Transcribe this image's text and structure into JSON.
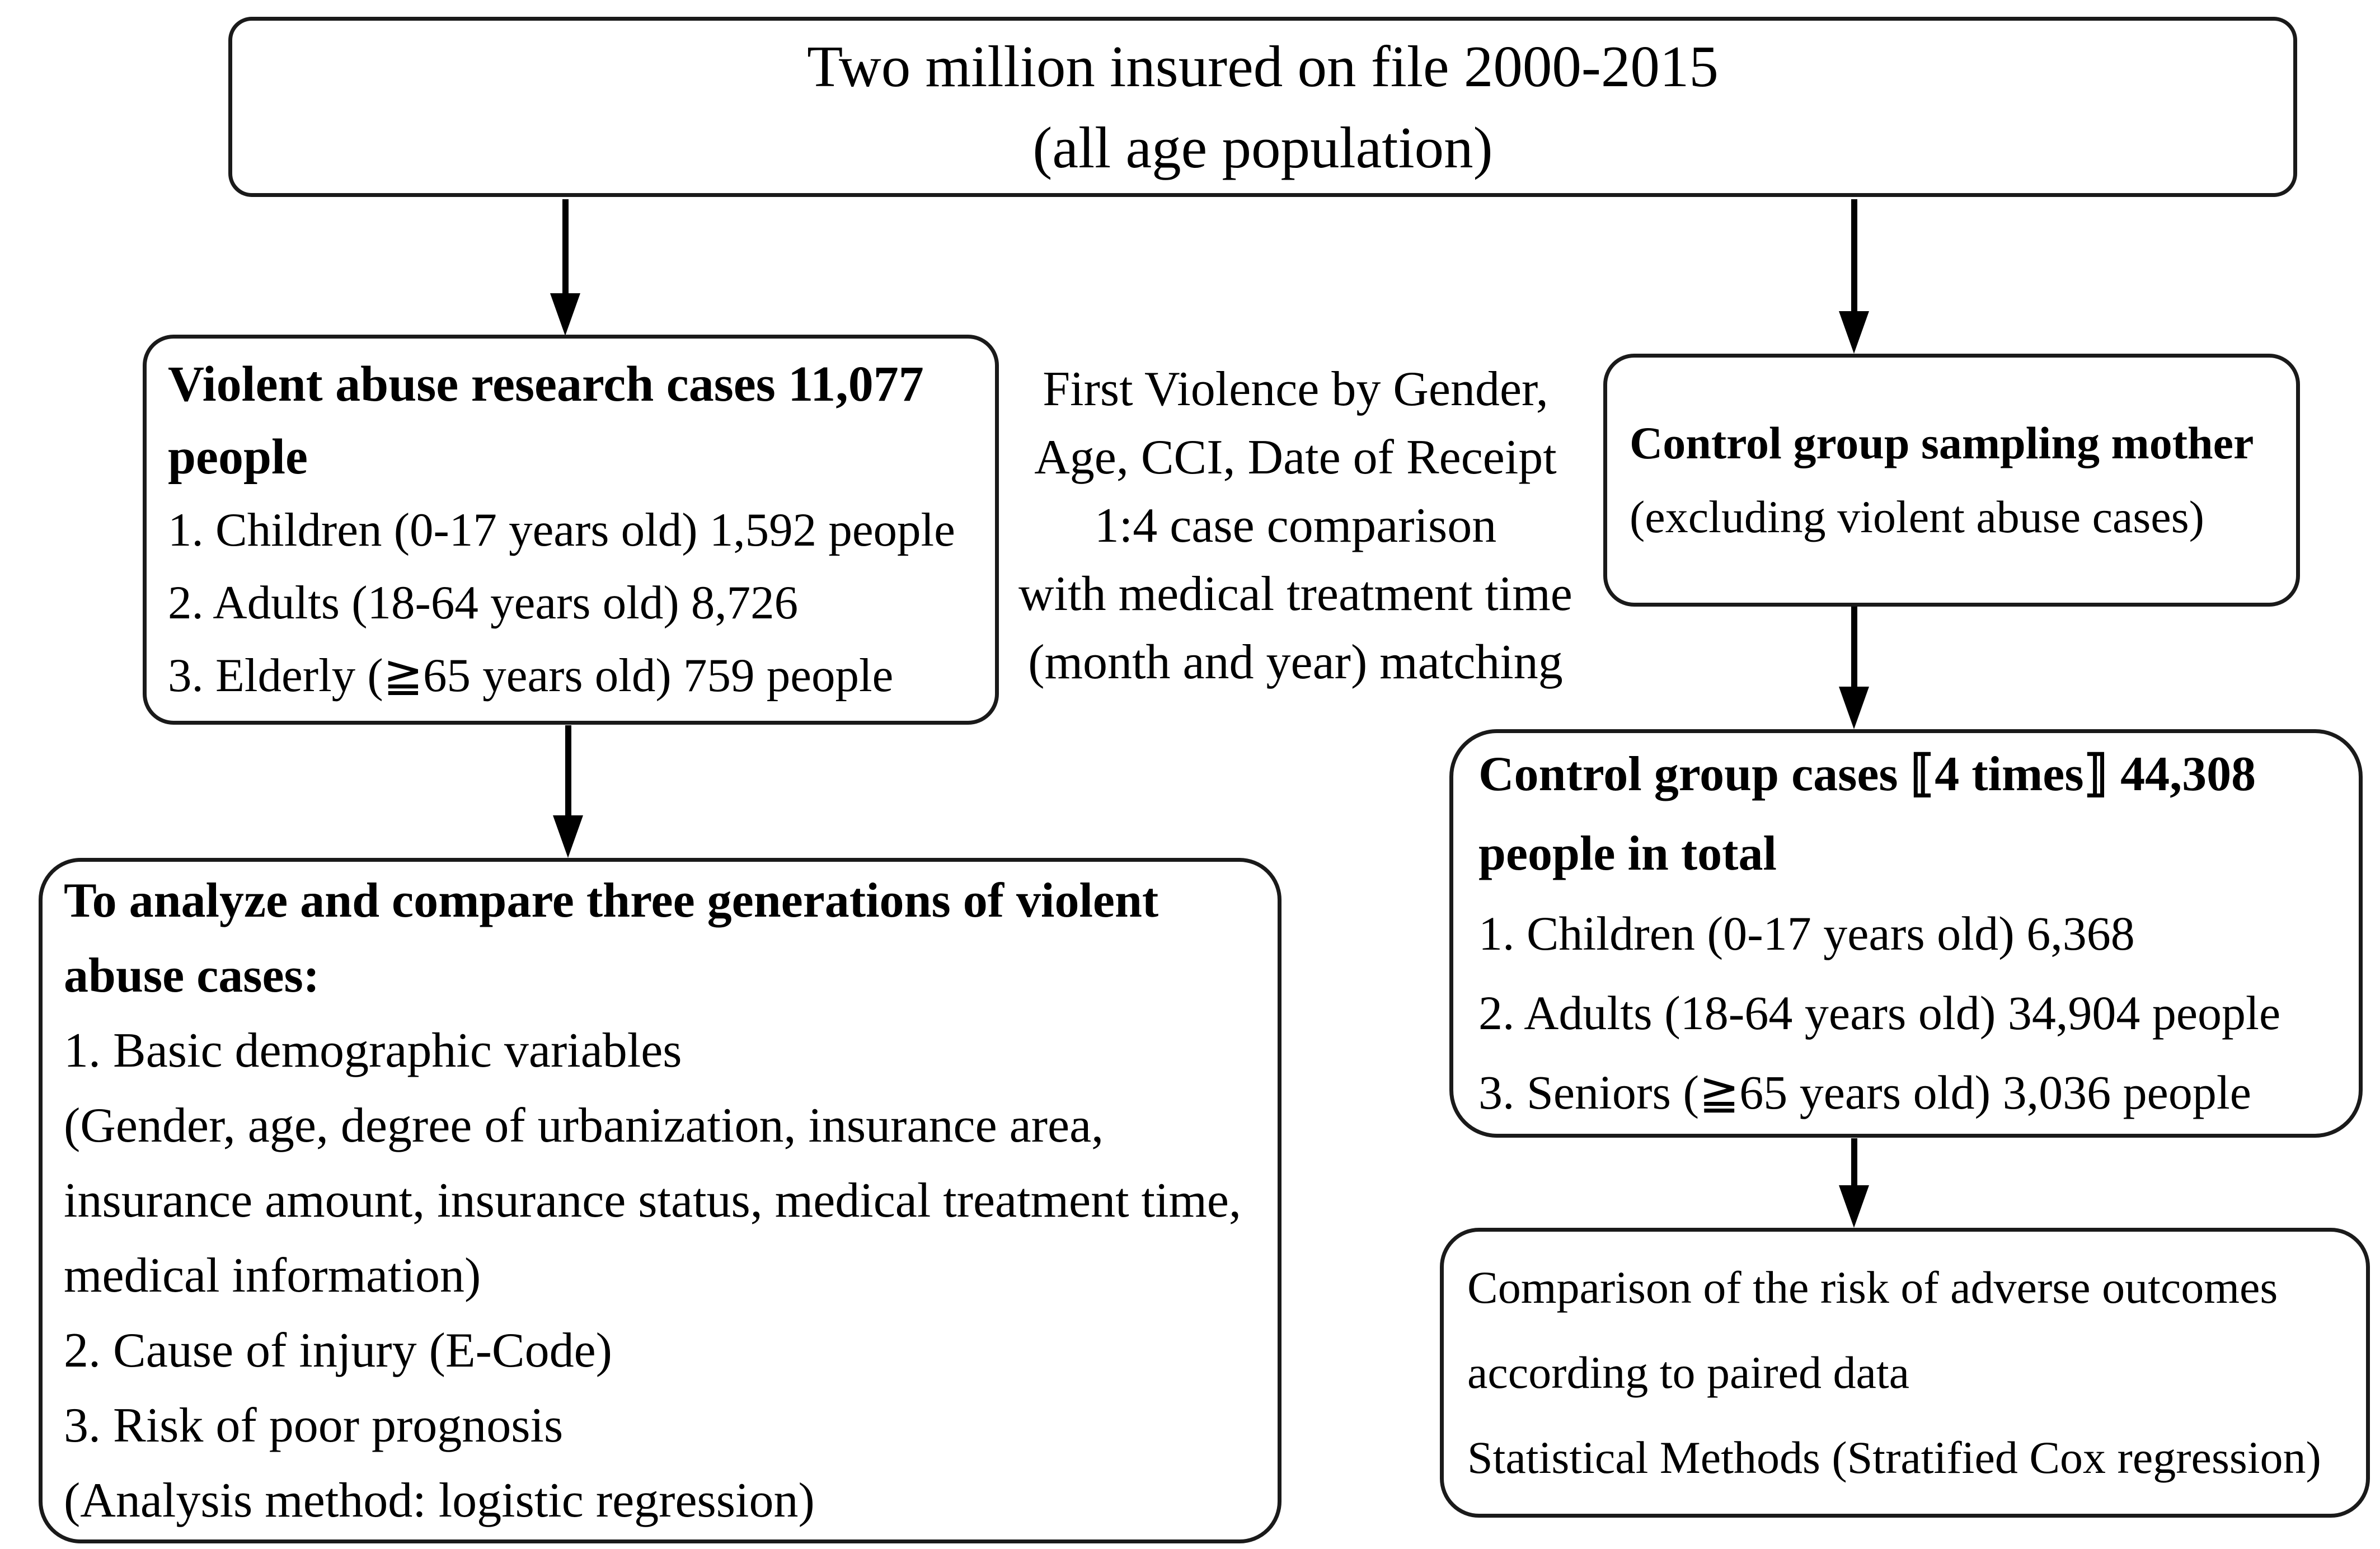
{
  "colors": {
    "border": "#1a1a1a",
    "text": "#000000",
    "background": "#ffffff"
  },
  "top_box": {
    "line1": "Two million insured on file 2000-2015",
    "line2": "(all age population)"
  },
  "matching_note": {
    "lines": [
      "First Violence by Gender,",
      "Age, CCI, Date of Receipt",
      "1:4 case comparison",
      "with medical treatment time",
      "(month and year) matching"
    ]
  },
  "abuse_cases_box": {
    "title_lines": [
      "Violent abuse research cases 11,077",
      "people"
    ],
    "items": [
      "1. Children (0-17 years old) 1,592 people",
      "2. Adults (18-64 years old) 8,726",
      "3. Elderly (≧65 years old) 759 people"
    ]
  },
  "control_sampling_box": {
    "title": "Control group sampling mother",
    "subtitle": "(excluding violent abuse cases)"
  },
  "control_cases_box": {
    "title_lines": [
      "Control group cases ⟦4 times⟧ 44,308",
      "people in total"
    ],
    "items": [
      "1. Children (0-17 years old) 6,368",
      "2. Adults (18-64 years old) 34,904 people",
      "3. Seniors (≧65 years old) 3,036 people"
    ]
  },
  "analysis_box": {
    "title_lines": [
      "To analyze and compare three generations of violent",
      "abuse cases:"
    ],
    "lines": [
      "1. Basic demographic variables",
      "(Gender, age, degree of urbanization, insurance area,",
      "insurance amount, insurance status, medical treatment time,",
      "medical information)",
      "2. Cause of injury (E-Code)",
      "3. Risk of poor prognosis",
      "(Analysis method: logistic regression)"
    ]
  },
  "outcome_box": {
    "lines": [
      "Comparison of the risk of adverse outcomes",
      "according to paired data",
      "Statistical Methods (Stratified Cox regression)"
    ]
  }
}
